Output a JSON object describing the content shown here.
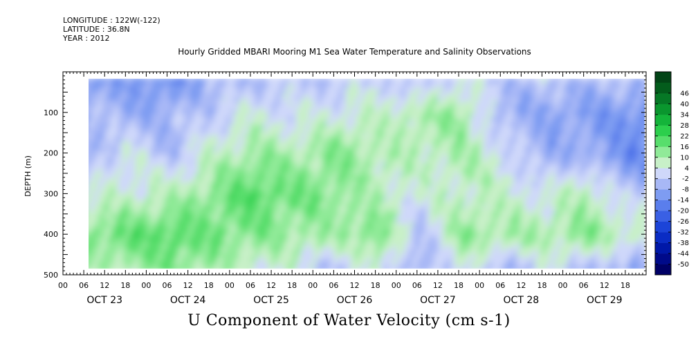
{
  "header": {
    "longitude": "LONGITUDE : 122W(-122)",
    "latitude": "LATITUDE : 36.8N",
    "year": "YEAR : 2012",
    "title": "Hourly Gridded MBARI Mooring M1 Sea Water Temperature and Salinity Observations",
    "footer": "U Component of Water Velocity (cm s-1)"
  },
  "chart_data": {
    "type": "heatmap",
    "title": "Hourly Gridded MBARI Mooring M1 Sea Water Temperature and Salinity Observations",
    "xlabel": "",
    "ylabel": "DEPTH (m)",
    "variable": "U Component of Water Velocity (cm s-1)",
    "x_hour_ticks": [
      "00",
      "06",
      "12",
      "18",
      "00",
      "06",
      "12",
      "18",
      "00",
      "06",
      "12",
      "18",
      "00",
      "06",
      "12",
      "18",
      "00",
      "06",
      "12",
      "18",
      "00",
      "06",
      "12",
      "18",
      "00",
      "06",
      "12",
      "18"
    ],
    "x_day_labels": [
      "OCT 23",
      "OCT 24",
      "OCT 25",
      "OCT 26",
      "OCT 27",
      "OCT 28",
      "OCT 29"
    ],
    "xlim": [
      "2012-10-23 00:00",
      "2012-10-30 00:00"
    ],
    "data_start": "2012-10-23 06:00",
    "y_ticks": [
      100,
      200,
      300,
      400,
      500
    ],
    "ylim": [
      500,
      0
    ],
    "y_reversed": true,
    "data_depth_range": [
      20,
      485
    ],
    "colorbar": {
      "levels": [
        -50,
        -44,
        -38,
        -32,
        -26,
        -20,
        -14,
        -8,
        -2,
        4,
        10,
        16,
        22,
        28,
        34,
        40,
        46
      ],
      "labels": [
        "46",
        "40",
        "34",
        "28",
        "22",
        "16",
        "10",
        "4",
        "-2",
        "-8",
        "-14",
        "-20",
        "-26",
        "-32",
        "-38",
        "-44",
        "-50"
      ],
      "colors": [
        "#000066",
        "#000a8a",
        "#0018a8",
        "#0a2cc4",
        "#1c44d8",
        "#3a60e4",
        "#5a7eec",
        "#7e9cf2",
        "#a8b8f6",
        "#cfd8fa",
        "#c8f0c8",
        "#90ea98",
        "#58de6c",
        "#2ccf4c",
        "#14b43a",
        "#0a962e",
        "#067826",
        "#035c1c",
        "#024416"
      ]
    },
    "profiles": [
      {
        "time": "2012-10-23 06:00",
        "depth": [
          20,
          100,
          200,
          300,
          400,
          485
        ],
        "u": [
          -12,
          -2,
          -6,
          4,
          14,
          8
        ]
      },
      {
        "time": "2012-10-23 18:00",
        "depth": [
          20,
          100,
          200,
          300,
          400,
          485
        ],
        "u": [
          -10,
          -8,
          4,
          6,
          18,
          10
        ]
      },
      {
        "time": "2012-10-24 06:00",
        "depth": [
          20,
          100,
          200,
          300,
          400,
          485
        ],
        "u": [
          -14,
          -6,
          -4,
          8,
          20,
          14
        ]
      },
      {
        "time": "2012-10-24 18:00",
        "depth": [
          20,
          100,
          200,
          300,
          400,
          485
        ],
        "u": [
          -4,
          -2,
          6,
          14,
          16,
          10
        ]
      },
      {
        "time": "2012-10-25 06:00",
        "depth": [
          20,
          100,
          200,
          300,
          400,
          485
        ],
        "u": [
          -4,
          4,
          12,
          20,
          14,
          6
        ]
      },
      {
        "time": "2012-10-25 18:00",
        "depth": [
          20,
          100,
          200,
          300,
          400,
          485
        ],
        "u": [
          -2,
          2,
          10,
          16,
          12,
          4
        ]
      },
      {
        "time": "2012-10-26 06:00",
        "depth": [
          20,
          100,
          200,
          300,
          400,
          485
        ],
        "u": [
          -2,
          4,
          14,
          14,
          10,
          -4
        ]
      },
      {
        "time": "2012-10-26 18:00",
        "depth": [
          20,
          100,
          200,
          300,
          400,
          485
        ],
        "u": [
          2,
          6,
          10,
          8,
          16,
          6
        ]
      },
      {
        "time": "2012-10-27 06:00",
        "depth": [
          20,
          100,
          200,
          300,
          400,
          485
        ],
        "u": [
          -4,
          10,
          8,
          4,
          -4,
          -8
        ]
      },
      {
        "time": "2012-10-27 18:00",
        "depth": [
          20,
          100,
          200,
          300,
          400,
          485
        ],
        "u": [
          4,
          12,
          10,
          8,
          12,
          4
        ]
      },
      {
        "time": "2012-10-28 06:00",
        "depth": [
          20,
          100,
          200,
          300,
          400,
          485
        ],
        "u": [
          -4,
          -6,
          4,
          6,
          12,
          -6
        ]
      },
      {
        "time": "2012-10-28 18:00",
        "depth": [
          20,
          100,
          200,
          300,
          400,
          485
        ],
        "u": [
          -2,
          -8,
          -8,
          4,
          10,
          2
        ]
      },
      {
        "time": "2012-10-29 06:00",
        "depth": [
          20,
          100,
          200,
          300,
          400,
          485
        ],
        "u": [
          -4,
          -10,
          -6,
          10,
          14,
          -4
        ]
      },
      {
        "time": "2012-10-29 18:00",
        "depth": [
          20,
          100,
          200,
          300,
          400,
          485
        ],
        "u": [
          -4,
          -12,
          -14,
          -2,
          8,
          -8
        ]
      }
    ]
  }
}
